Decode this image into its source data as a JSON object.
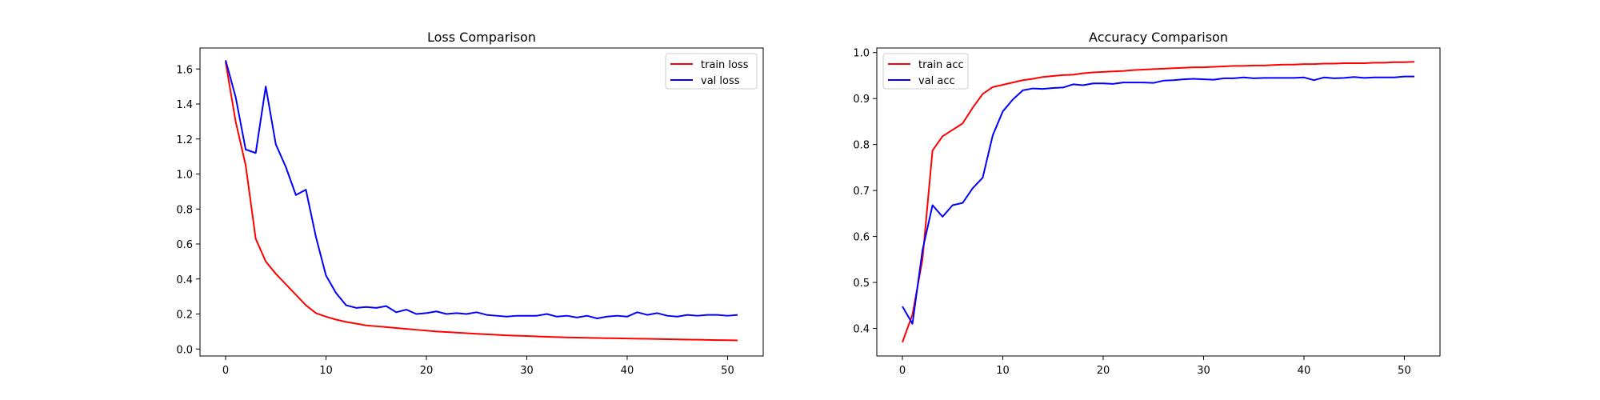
{
  "chart_data": [
    {
      "type": "line",
      "title": "Loss Comparison",
      "xlabel": "",
      "ylabel": "",
      "xlim": [
        -2.55,
        53.55
      ],
      "ylim": [
        -0.04,
        1.72
      ],
      "xticks": [
        "0",
        "10",
        "20",
        "30",
        "40",
        "50"
      ],
      "yticks": [
        "0.0",
        "0.2",
        "0.4",
        "0.6",
        "0.8",
        "1.0",
        "1.2",
        "1.4",
        "1.6"
      ],
      "grid": false,
      "legend": "top-right",
      "series": [
        {
          "name": "train loss",
          "color": "#ff0000",
          "x": [
            0,
            1,
            2,
            3,
            4,
            5,
            6,
            7,
            8,
            9,
            10,
            11,
            12,
            13,
            14,
            15,
            16,
            17,
            18,
            19,
            20,
            21,
            22,
            23,
            24,
            25,
            26,
            27,
            28,
            29,
            30,
            31,
            32,
            33,
            34,
            35,
            36,
            37,
            38,
            39,
            40,
            41,
            42,
            43,
            44,
            45,
            46,
            47,
            48,
            49,
            50,
            51
          ],
          "values": [
            1.64,
            1.3,
            1.05,
            0.63,
            0.5,
            0.43,
            0.37,
            0.31,
            0.25,
            0.205,
            0.185,
            0.168,
            0.155,
            0.145,
            0.135,
            0.13,
            0.125,
            0.12,
            0.115,
            0.11,
            0.105,
            0.1,
            0.097,
            0.094,
            0.09,
            0.087,
            0.084,
            0.081,
            0.078,
            0.076,
            0.074,
            0.072,
            0.07,
            0.068,
            0.066,
            0.065,
            0.064,
            0.063,
            0.062,
            0.061,
            0.06,
            0.059,
            0.058,
            0.057,
            0.056,
            0.055,
            0.054,
            0.053,
            0.052,
            0.051,
            0.05,
            0.049
          ]
        },
        {
          "name": "val loss",
          "color": "#0000ff",
          "x": [
            0,
            1,
            2,
            3,
            4,
            5,
            6,
            7,
            8,
            9,
            10,
            11,
            12,
            13,
            14,
            15,
            16,
            17,
            18,
            19,
            20,
            21,
            22,
            23,
            24,
            25,
            26,
            27,
            28,
            29,
            30,
            31,
            32,
            33,
            34,
            35,
            36,
            37,
            38,
            39,
            40,
            41,
            42,
            43,
            44,
            45,
            46,
            47,
            48,
            49,
            50,
            51
          ],
          "values": [
            1.65,
            1.44,
            1.14,
            1.12,
            1.5,
            1.17,
            1.04,
            0.88,
            0.91,
            0.64,
            0.42,
            0.32,
            0.25,
            0.235,
            0.24,
            0.235,
            0.245,
            0.21,
            0.225,
            0.2,
            0.205,
            0.215,
            0.2,
            0.205,
            0.2,
            0.21,
            0.195,
            0.19,
            0.185,
            0.19,
            0.19,
            0.19,
            0.2,
            0.185,
            0.19,
            0.18,
            0.19,
            0.175,
            0.185,
            0.19,
            0.185,
            0.21,
            0.195,
            0.205,
            0.19,
            0.185,
            0.195,
            0.19,
            0.195,
            0.195,
            0.19,
            0.195
          ]
        }
      ]
    },
    {
      "type": "line",
      "title": "Accuracy Comparison",
      "xlabel": "",
      "ylabel": "",
      "xlim": [
        -2.55,
        53.55
      ],
      "ylim": [
        0.34,
        1.01
      ],
      "xticks": [
        "0",
        "10",
        "20",
        "30",
        "40",
        "50"
      ],
      "yticks": [
        "0.4",
        "0.5",
        "0.6",
        "0.7",
        "0.8",
        "0.9",
        "1.0"
      ],
      "grid": false,
      "legend": "top-left",
      "series": [
        {
          "name": "train acc",
          "color": "#ff0000",
          "x": [
            0,
            1,
            2,
            3,
            4,
            5,
            6,
            7,
            8,
            9,
            10,
            11,
            12,
            13,
            14,
            15,
            16,
            17,
            18,
            19,
            20,
            21,
            22,
            23,
            24,
            25,
            26,
            27,
            28,
            29,
            30,
            31,
            32,
            33,
            34,
            35,
            36,
            37,
            38,
            39,
            40,
            41,
            42,
            43,
            44,
            45,
            46,
            47,
            48,
            49,
            50,
            51
          ],
          "values": [
            0.37,
            0.43,
            0.55,
            0.787,
            0.818,
            0.832,
            0.846,
            0.88,
            0.91,
            0.925,
            0.93,
            0.935,
            0.94,
            0.943,
            0.947,
            0.949,
            0.951,
            0.952,
            0.955,
            0.957,
            0.958,
            0.959,
            0.96,
            0.962,
            0.963,
            0.964,
            0.965,
            0.966,
            0.967,
            0.968,
            0.968,
            0.969,
            0.97,
            0.971,
            0.971,
            0.972,
            0.972,
            0.973,
            0.974,
            0.974,
            0.975,
            0.975,
            0.976,
            0.976,
            0.977,
            0.977,
            0.977,
            0.978,
            0.978,
            0.979,
            0.979,
            0.98
          ]
        },
        {
          "name": "val acc",
          "color": "#0000ff",
          "x": [
            0,
            1,
            2,
            3,
            4,
            5,
            6,
            7,
            8,
            9,
            10,
            11,
            12,
            13,
            14,
            15,
            16,
            17,
            18,
            19,
            20,
            21,
            22,
            23,
            24,
            25,
            26,
            27,
            28,
            29,
            30,
            31,
            32,
            33,
            34,
            35,
            36,
            37,
            38,
            39,
            40,
            41,
            42,
            43,
            44,
            45,
            46,
            47,
            48,
            49,
            50,
            51
          ],
          "values": [
            0.448,
            0.41,
            0.57,
            0.668,
            0.643,
            0.668,
            0.673,
            0.705,
            0.728,
            0.82,
            0.872,
            0.898,
            0.918,
            0.922,
            0.921,
            0.923,
            0.924,
            0.931,
            0.929,
            0.933,
            0.933,
            0.932,
            0.935,
            0.935,
            0.935,
            0.934,
            0.939,
            0.94,
            0.942,
            0.943,
            0.942,
            0.941,
            0.944,
            0.944,
            0.946,
            0.944,
            0.945,
            0.945,
            0.945,
            0.945,
            0.946,
            0.94,
            0.946,
            0.944,
            0.945,
            0.947,
            0.945,
            0.946,
            0.946,
            0.946,
            0.948,
            0.948
          ]
        }
      ]
    }
  ]
}
